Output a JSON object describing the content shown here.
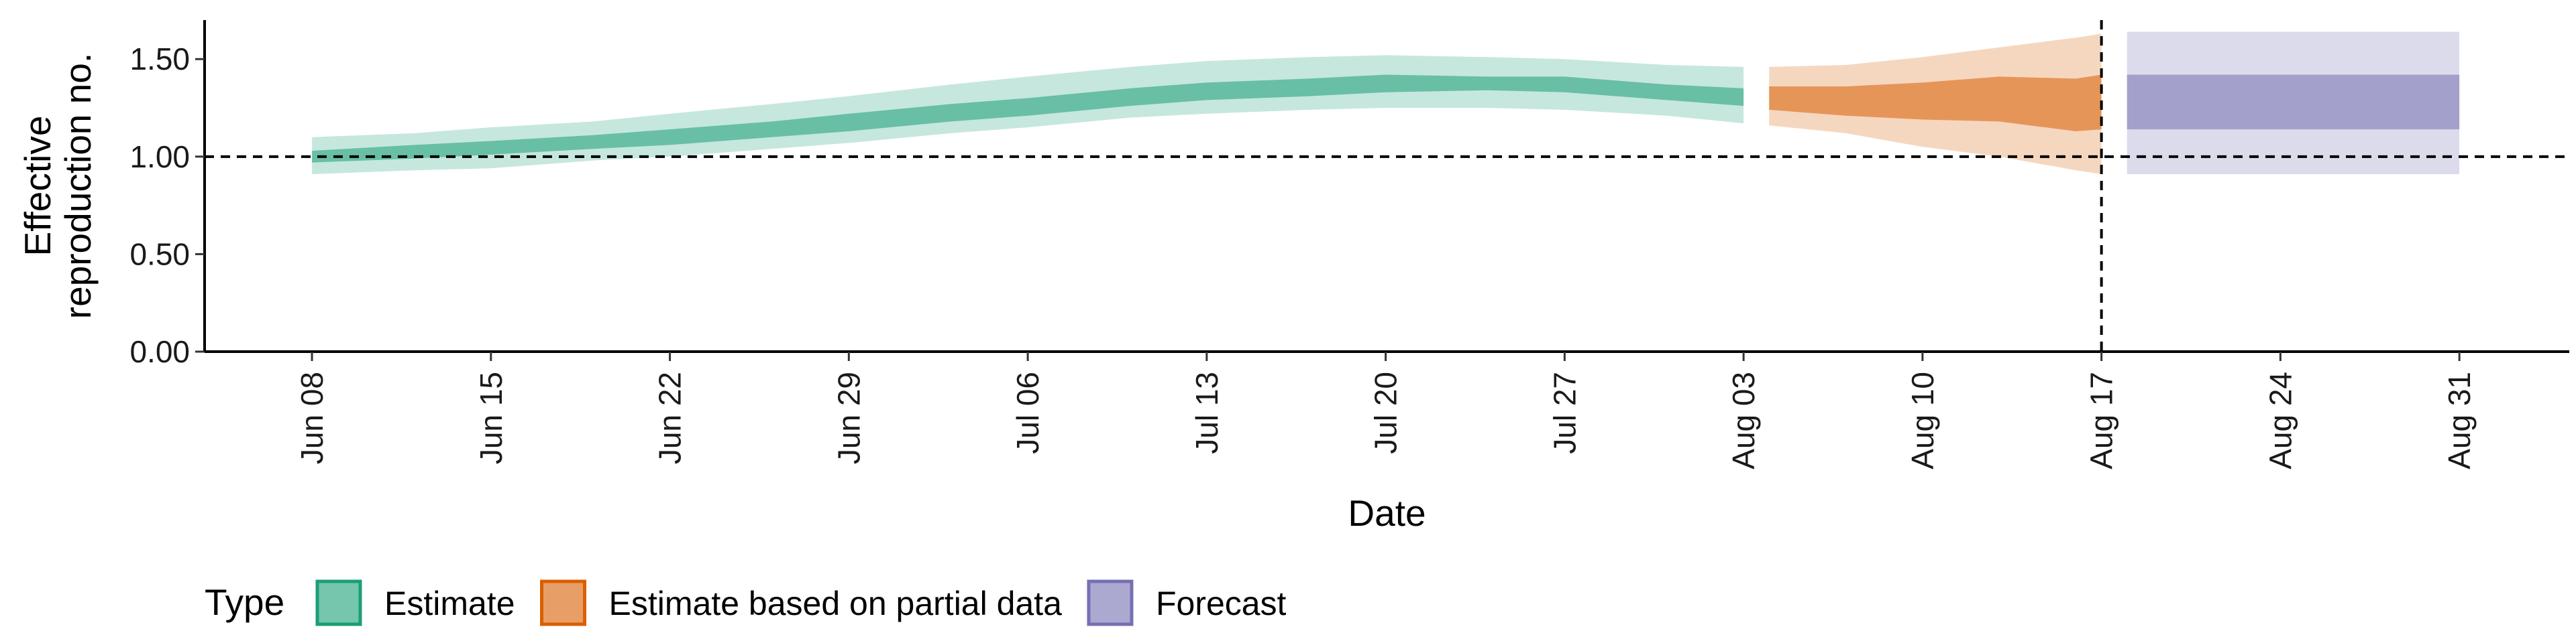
{
  "chart_data": {
    "type": "area",
    "xlabel": "Date",
    "ylabel": [
      "Effective",
      "reproduction no."
    ],
    "ylim": [
      0,
      1.7
    ],
    "yticks": [
      0,
      0.5,
      1.0,
      1.5
    ],
    "ytick_labels": [
      "0.00",
      "0.50",
      "1.00",
      "1.50"
    ],
    "xtick_days": [
      0,
      7,
      14,
      21,
      28,
      35,
      42,
      49,
      56,
      63,
      70,
      77,
      84
    ],
    "xtick_labels": [
      "Jun 08",
      "Jun 15",
      "Jun 22",
      "Jun 29",
      "Jul 06",
      "Jul 13",
      "Jul 20",
      "Jul 27",
      "Aug 03",
      "Aug 10",
      "Aug 17",
      "Aug 24",
      "Aug 31"
    ],
    "xlim_days": [
      -4.2,
      88.3
    ],
    "reference_hline": 1.0,
    "reference_vline_day": 70,
    "legend_title": "Type",
    "legend_position": "bottom",
    "series": [
      {
        "name": "Estimate",
        "color": "#1b9e77",
        "x_days": [
          0,
          4,
          7,
          11,
          14,
          18,
          21,
          25,
          28,
          32,
          35,
          39,
          42,
          46,
          49,
          53,
          56
        ],
        "lower90": [
          0.91,
          0.93,
          0.94,
          0.98,
          1.0,
          1.04,
          1.07,
          1.12,
          1.15,
          1.2,
          1.22,
          1.24,
          1.25,
          1.25,
          1.24,
          1.21,
          1.17
        ],
        "lower50": [
          0.97,
          0.99,
          1.01,
          1.04,
          1.06,
          1.1,
          1.13,
          1.18,
          1.21,
          1.26,
          1.29,
          1.31,
          1.33,
          1.34,
          1.33,
          1.29,
          1.26
        ],
        "upper50": [
          1.03,
          1.06,
          1.08,
          1.11,
          1.14,
          1.18,
          1.22,
          1.27,
          1.3,
          1.35,
          1.38,
          1.4,
          1.42,
          1.41,
          1.41,
          1.37,
          1.35
        ],
        "upper90": [
          1.1,
          1.12,
          1.15,
          1.18,
          1.22,
          1.27,
          1.31,
          1.37,
          1.41,
          1.46,
          1.49,
          1.51,
          1.52,
          1.51,
          1.5,
          1.47,
          1.46
        ]
      },
      {
        "name": "Estimate based on partial data",
        "color": "#d95f02",
        "x_days": [
          57,
          60,
          63,
          66,
          69,
          70
        ],
        "lower90": [
          1.16,
          1.12,
          1.05,
          1.0,
          0.93,
          0.91
        ],
        "lower50": [
          1.24,
          1.21,
          1.19,
          1.18,
          1.13,
          1.14
        ],
        "upper50": [
          1.36,
          1.36,
          1.38,
          1.41,
          1.4,
          1.42
        ],
        "upper90": [
          1.46,
          1.47,
          1.51,
          1.56,
          1.61,
          1.63
        ]
      },
      {
        "name": "Forecast",
        "color": "#7570b3",
        "x_days": [
          71,
          84
        ],
        "lower90": [
          0.91,
          0.91
        ],
        "lower50": [
          1.14,
          1.14
        ],
        "upper50": [
          1.42,
          1.42
        ],
        "upper90": [
          1.64,
          1.64
        ]
      }
    ]
  }
}
